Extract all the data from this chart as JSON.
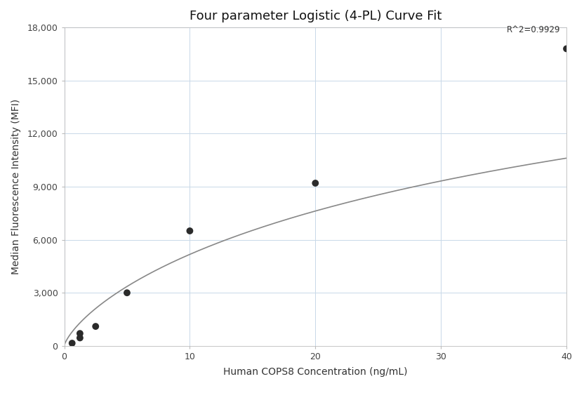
{
  "title": "Four parameter Logistic (4-PL) Curve Fit",
  "xlabel": "Human COPS8 Concentration (ng/mL)",
  "ylabel": "Median Fluorescence Intensity (MFI)",
  "scatter_x": [
    0.625,
    1.25,
    1.25,
    2.5,
    5.0,
    10.0,
    20.0,
    40.0
  ],
  "scatter_y": [
    150,
    450,
    700,
    1100,
    3000,
    6500,
    9200,
    16800
  ],
  "xlim": [
    0,
    40
  ],
  "ylim": [
    0,
    18000
  ],
  "xticks": [
    0,
    10,
    20,
    30,
    40
  ],
  "yticks": [
    0,
    3000,
    6000,
    9000,
    12000,
    15000,
    18000
  ],
  "ytick_labels": [
    "0",
    "3,000",
    "6,000",
    "9,000",
    "12,000",
    "15,000",
    "18,000"
  ],
  "r_squared": "R^2=0.9929",
  "dot_color": "#2b2b2b",
  "dot_size": 50,
  "line_color": "#888888",
  "line_width": 1.2,
  "background_color": "#ffffff",
  "grid_color": "#c8d8e8",
  "title_fontsize": 13,
  "label_fontsize": 10,
  "tick_fontsize": 9,
  "4pl_A": 0.0,
  "4pl_B": 0.75,
  "4pl_C": 60.0,
  "4pl_D": 25000.0
}
